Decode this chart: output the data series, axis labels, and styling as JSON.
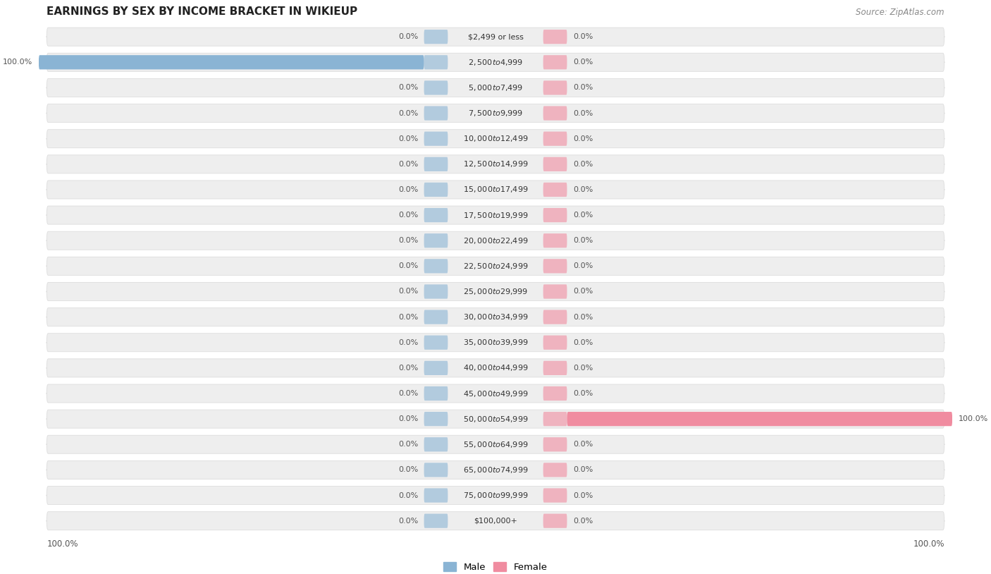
{
  "title": "EARNINGS BY SEX BY INCOME BRACKET IN WIKIEUP",
  "source": "Source: ZipAtlas.com",
  "categories": [
    "$2,499 or less",
    "$2,500 to $4,999",
    "$5,000 to $7,499",
    "$7,500 to $9,999",
    "$10,000 to $12,499",
    "$12,500 to $14,999",
    "$15,000 to $17,499",
    "$17,500 to $19,999",
    "$20,000 to $22,499",
    "$22,500 to $24,999",
    "$25,000 to $29,999",
    "$30,000 to $34,999",
    "$35,000 to $39,999",
    "$40,000 to $44,999",
    "$45,000 to $49,999",
    "$50,000 to $54,999",
    "$55,000 to $64,999",
    "$65,000 to $74,999",
    "$75,000 to $99,999",
    "$100,000+"
  ],
  "male_values": [
    0.0,
    100.0,
    0.0,
    0.0,
    0.0,
    0.0,
    0.0,
    0.0,
    0.0,
    0.0,
    0.0,
    0.0,
    0.0,
    0.0,
    0.0,
    0.0,
    0.0,
    0.0,
    0.0,
    0.0
  ],
  "female_values": [
    0.0,
    0.0,
    0.0,
    0.0,
    0.0,
    0.0,
    0.0,
    0.0,
    0.0,
    0.0,
    0.0,
    0.0,
    0.0,
    0.0,
    0.0,
    100.0,
    0.0,
    0.0,
    0.0,
    0.0
  ],
  "male_color": "#8ab4d4",
  "female_color": "#f08ca0",
  "male_label": "Male",
  "female_label": "Female",
  "max_val": 100.0,
  "title_fontsize": 11,
  "source_fontsize": 8.5,
  "label_fontsize": 8,
  "category_fontsize": 8,
  "axis_label_fontsize": 8.5,
  "row_bg_color": "#eeeeee",
  "row_bg_edge": "#dddddd"
}
